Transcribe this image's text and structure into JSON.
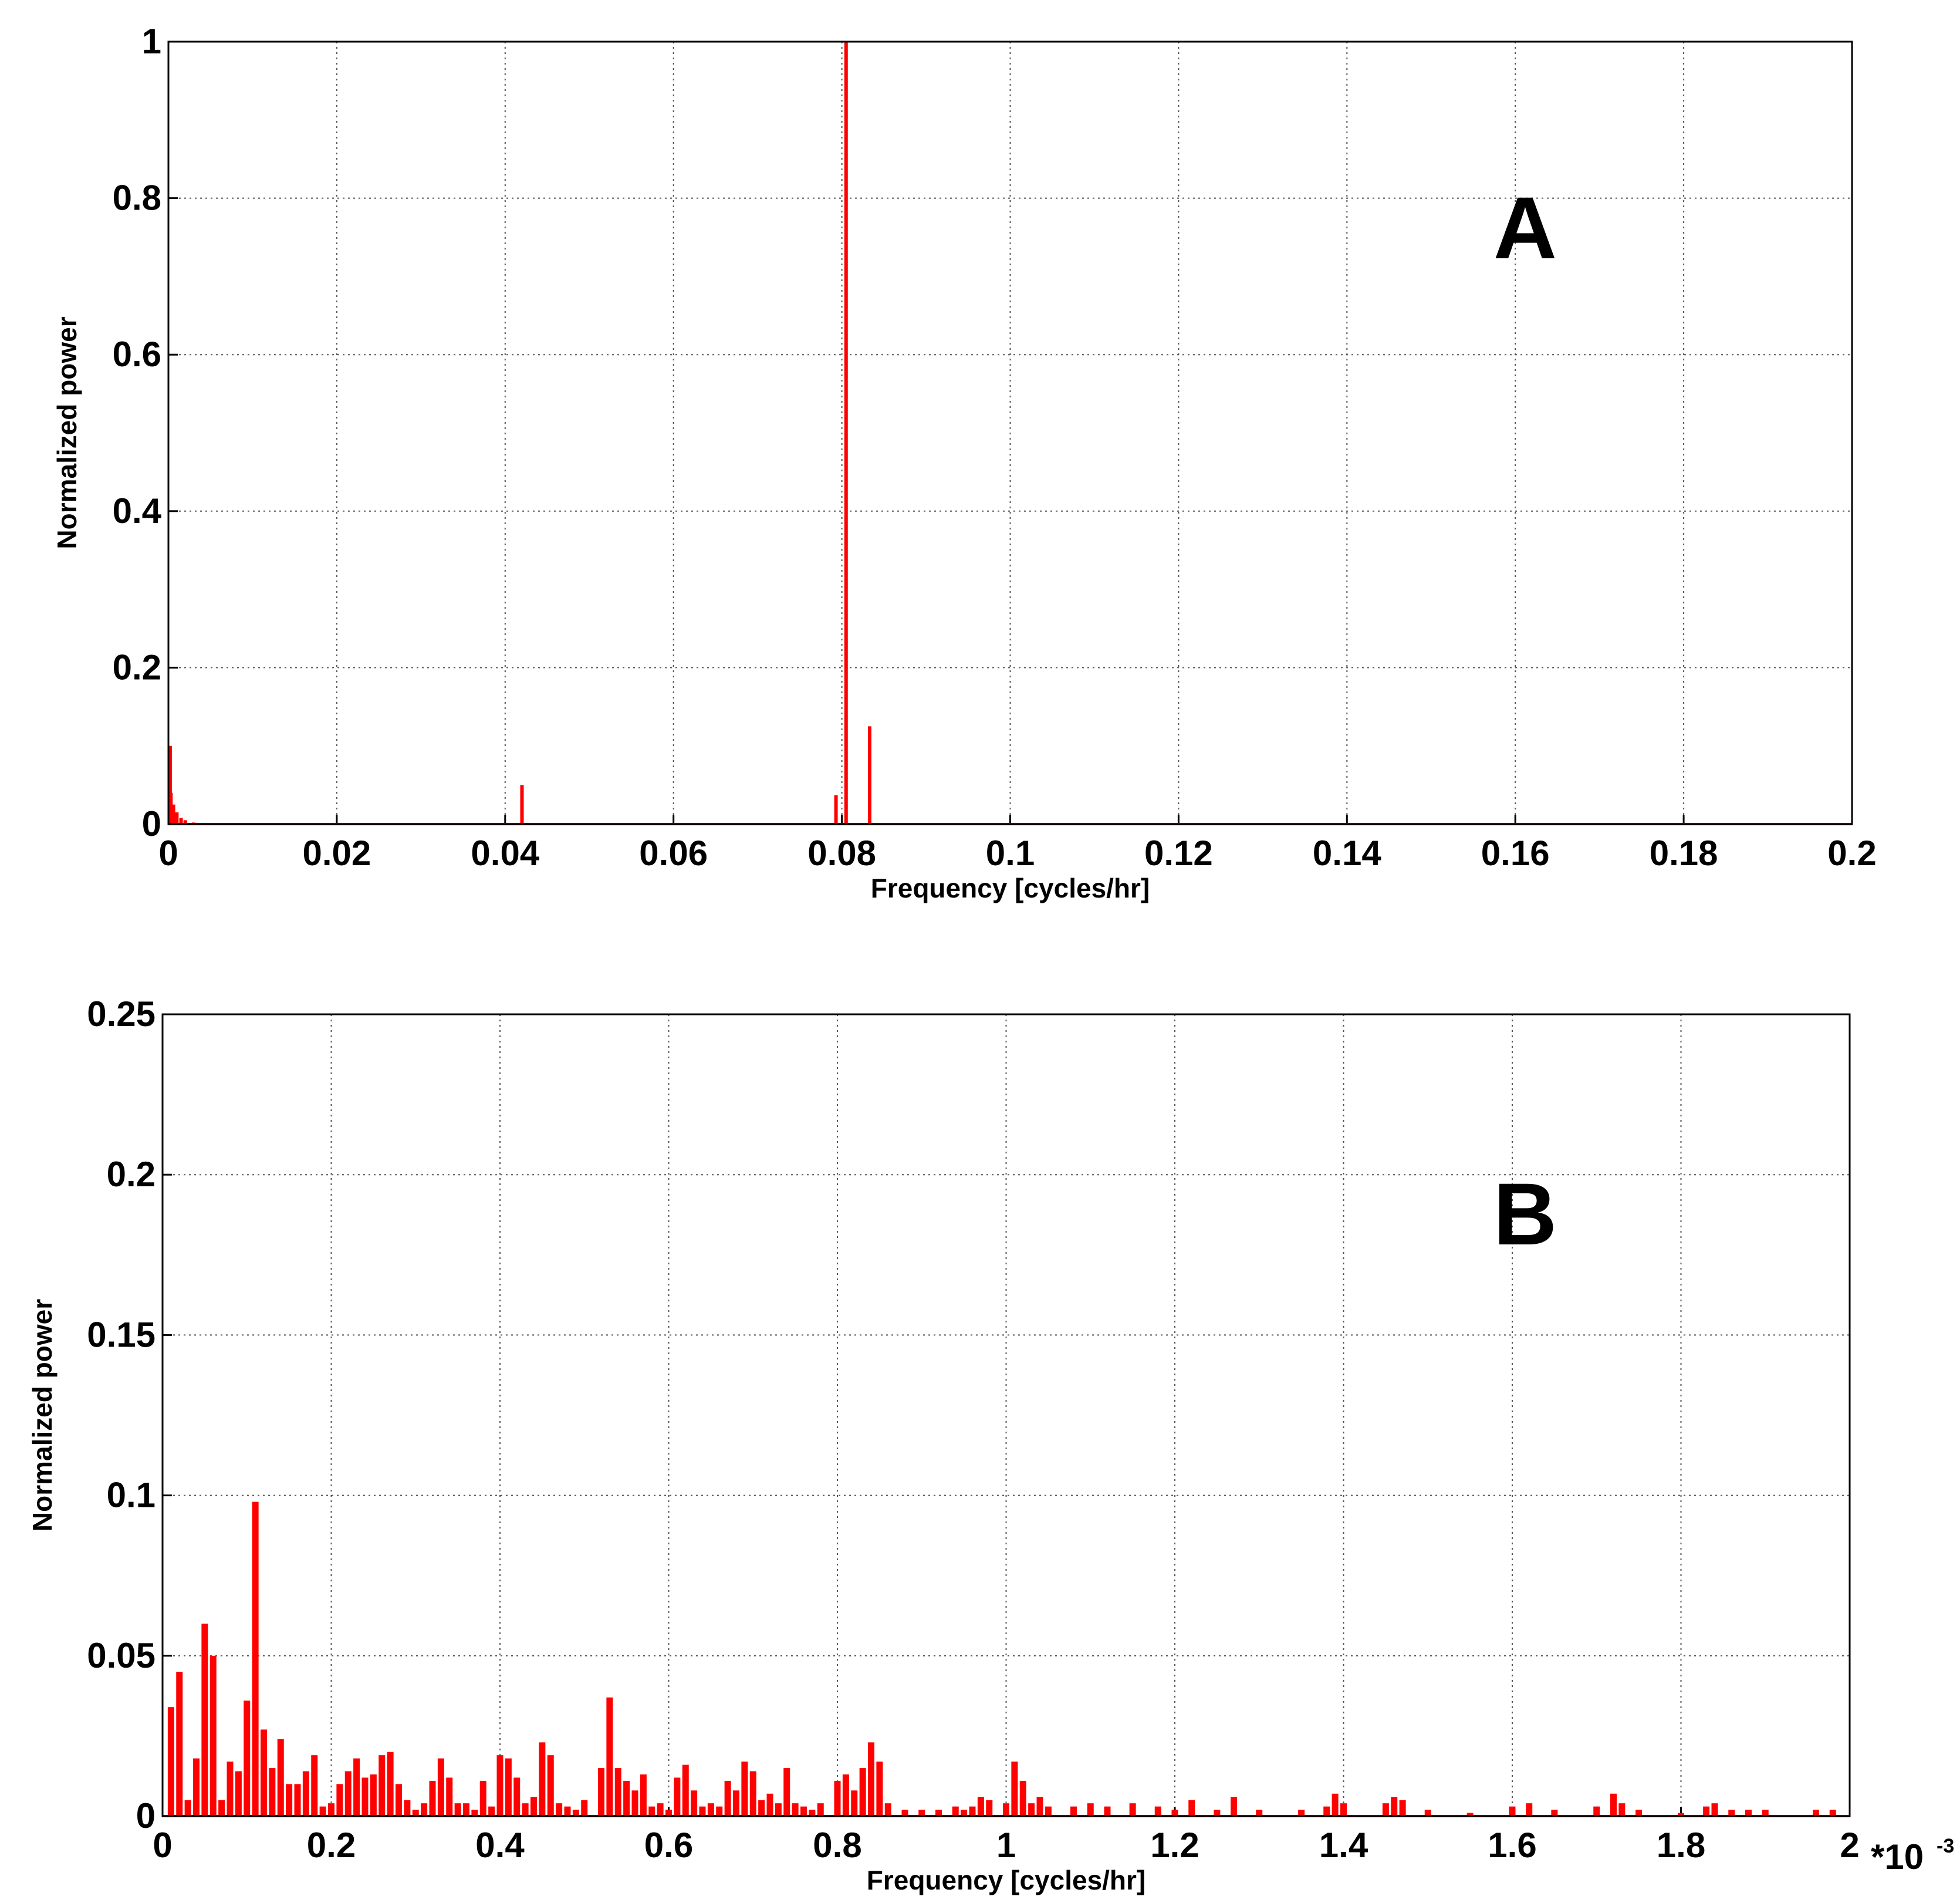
{
  "chart_data": [
    {
      "type": "bar",
      "panel_label": "A",
      "x_label": "Frequency [cycles/hr]",
      "y_label": "Normalized power",
      "color": "#ff0000",
      "grid": true,
      "x": [
        0,
        0.0003,
        0.0006,
        0.001,
        0.0015,
        0.002,
        0.003,
        0.042,
        0.0793,
        0.0805,
        0.0833
      ],
      "values": [
        0.1,
        0.04,
        0.025,
        0.015,
        0.008,
        0.005,
        0.002,
        0.05,
        0.037,
        1.0,
        0.125
      ],
      "xlim": [
        0,
        0.2
      ],
      "xticks": [
        0,
        0.02,
        0.04,
        0.06,
        0.08,
        0.1,
        0.12,
        0.14,
        0.16,
        0.18,
        0.2
      ],
      "ylim": [
        0,
        1
      ],
      "yticks": [
        0,
        0.2,
        0.4,
        0.6,
        0.8,
        1
      ]
    },
    {
      "type": "bar",
      "panel_label": "B",
      "x_label": "Frequency [cycles/hr]",
      "y_label": "Normalized power",
      "x_multiplier": "*10",
      "x_multiplier_exponent": "-3",
      "color": "#ff0000",
      "grid": true,
      "x": [
        0.01,
        0.02,
        0.03,
        0.04,
        0.05,
        0.06,
        0.07,
        0.08,
        0.09,
        0.1,
        0.11,
        0.12,
        0.13,
        0.14,
        0.15,
        0.16,
        0.17,
        0.18,
        0.19,
        0.2,
        0.21,
        0.22,
        0.23,
        0.24,
        0.25,
        0.26,
        0.27,
        0.28,
        0.29,
        0.3,
        0.31,
        0.32,
        0.33,
        0.34,
        0.35,
        0.36,
        0.37,
        0.38,
        0.39,
        0.4,
        0.41,
        0.42,
        0.43,
        0.44,
        0.45,
        0.46,
        0.47,
        0.48,
        0.49,
        0.5,
        0.52,
        0.53,
        0.54,
        0.55,
        0.56,
        0.57,
        0.58,
        0.59,
        0.6,
        0.61,
        0.62,
        0.63,
        0.64,
        0.65,
        0.66,
        0.67,
        0.68,
        0.69,
        0.7,
        0.71,
        0.72,
        0.73,
        0.74,
        0.75,
        0.76,
        0.77,
        0.78,
        0.8,
        0.81,
        0.82,
        0.83,
        0.84,
        0.85,
        0.86,
        0.88,
        0.9,
        0.92,
        0.94,
        0.95,
        0.96,
        0.97,
        0.98,
        1.0,
        1.01,
        1.02,
        1.03,
        1.04,
        1.05,
        1.08,
        1.1,
        1.12,
        1.15,
        1.18,
        1.2,
        1.22,
        1.25,
        1.27,
        1.3,
        1.35,
        1.38,
        1.39,
        1.4,
        1.45,
        1.46,
        1.47,
        1.5,
        1.55,
        1.6,
        1.62,
        1.65,
        1.7,
        1.72,
        1.73,
        1.75,
        1.8,
        1.83,
        1.84,
        1.86,
        1.88,
        1.9,
        1.96,
        1.98
      ],
      "values": [
        0.034,
        0.045,
        0.005,
        0.018,
        0.06,
        0.05,
        0.005,
        0.017,
        0.014,
        0.036,
        0.098,
        0.027,
        0.015,
        0.024,
        0.01,
        0.01,
        0.014,
        0.019,
        0.003,
        0.004,
        0.01,
        0.014,
        0.018,
        0.012,
        0.013,
        0.019,
        0.02,
        0.01,
        0.005,
        0.002,
        0.004,
        0.011,
        0.018,
        0.012,
        0.004,
        0.004,
        0.002,
        0.011,
        0.003,
        0.019,
        0.018,
        0.012,
        0.004,
        0.006,
        0.023,
        0.019,
        0.004,
        0.003,
        0.002,
        0.005,
        0.015,
        0.037,
        0.015,
        0.011,
        0.008,
        0.013,
        0.003,
        0.004,
        0.002,
        0.012,
        0.016,
        0.008,
        0.003,
        0.004,
        0.003,
        0.011,
        0.008,
        0.017,
        0.014,
        0.005,
        0.007,
        0.004,
        0.015,
        0.004,
        0.003,
        0.002,
        0.004,
        0.011,
        0.013,
        0.008,
        0.015,
        0.023,
        0.017,
        0.004,
        0.002,
        0.002,
        0.002,
        0.003,
        0.002,
        0.003,
        0.006,
        0.005,
        0.004,
        0.017,
        0.011,
        0.004,
        0.006,
        0.003,
        0.003,
        0.004,
        0.003,
        0.004,
        0.003,
        0.002,
        0.005,
        0.002,
        0.006,
        0.002,
        0.002,
        0.003,
        0.007,
        0.004,
        0.004,
        0.006,
        0.005,
        0.002,
        0.001,
        0.003,
        0.004,
        0.002,
        0.003,
        0.007,
        0.004,
        0.002,
        0.001,
        0.003,
        0.004,
        0.002,
        0.002,
        0.002,
        0.002,
        0.002
      ],
      "xlim": [
        0,
        2
      ],
      "xticks": [
        0,
        0.2,
        0.4,
        0.6,
        0.8,
        1,
        1.2,
        1.4,
        1.6,
        1.8,
        2
      ],
      "ylim": [
        0,
        0.25
      ],
      "yticks": [
        0,
        0.05,
        0.1,
        0.15,
        0.2,
        0.25
      ]
    }
  ]
}
